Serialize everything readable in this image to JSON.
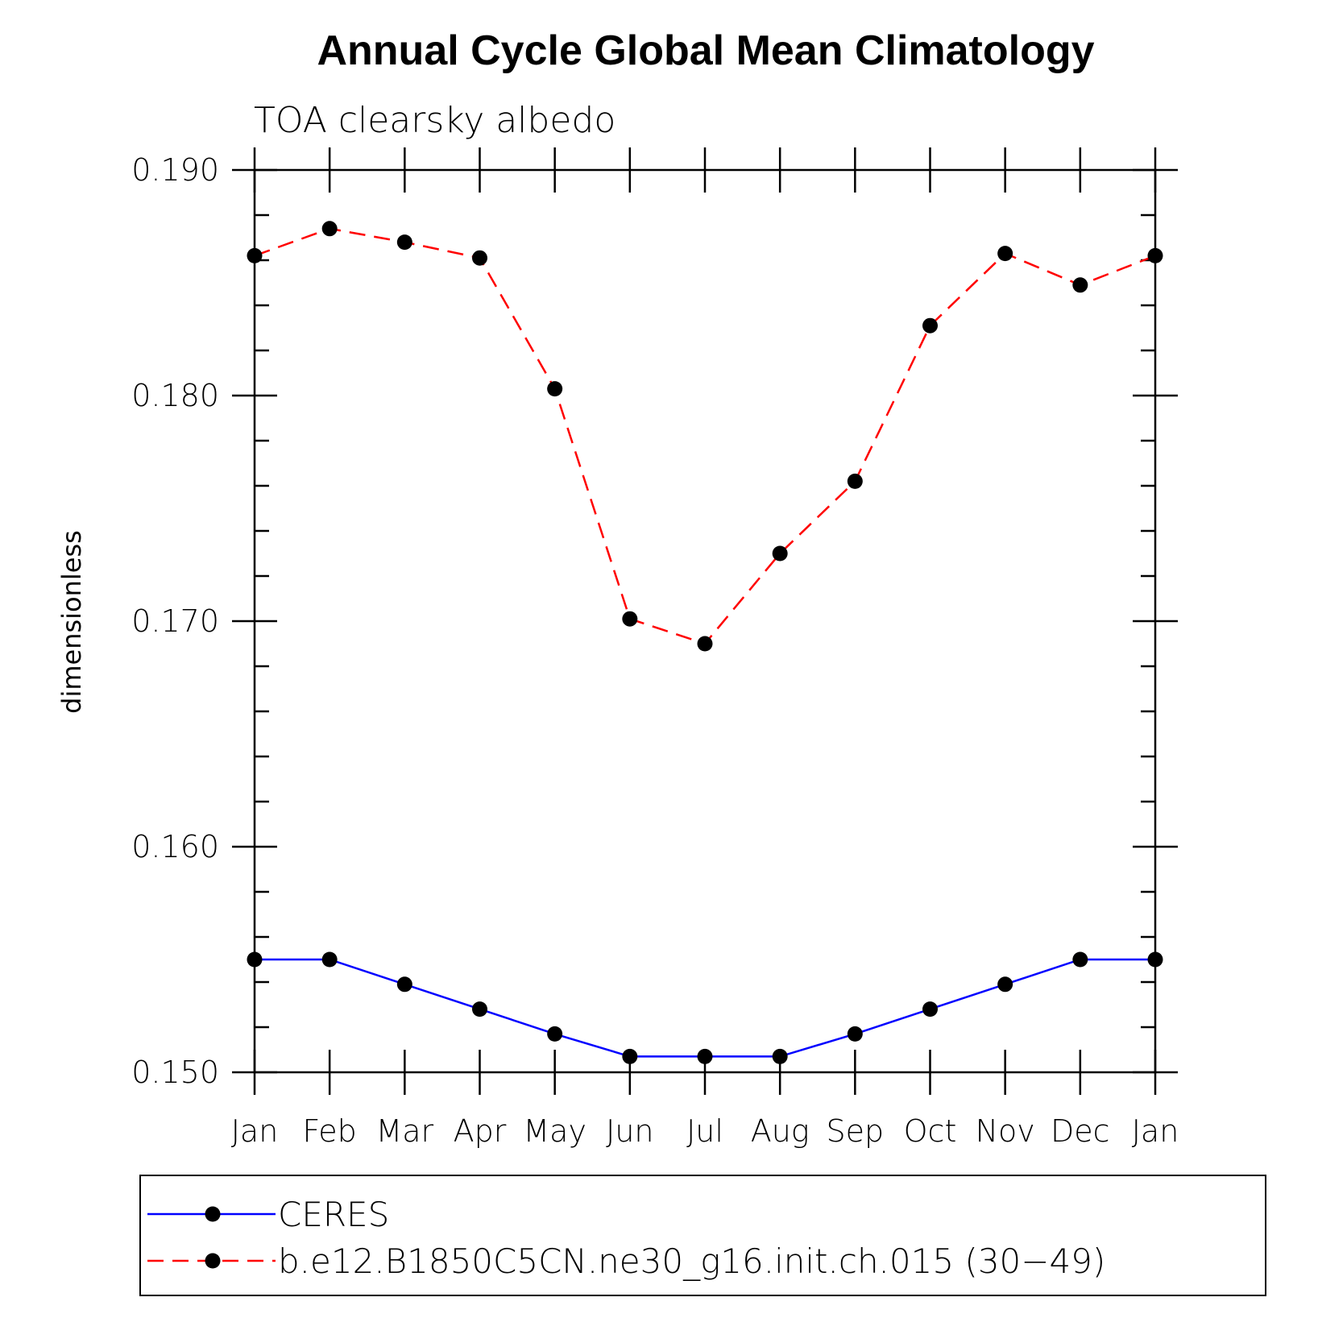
{
  "chart_data": {
    "type": "line",
    "title": "Annual Cycle Global Mean Climatology",
    "subtitle": "TOA clearsky albedo",
    "xlabel": "",
    "ylabel": "dimensionless",
    "categories": [
      "Jan",
      "Feb",
      "Mar",
      "Apr",
      "May",
      "Jun",
      "Jul",
      "Aug",
      "Sep",
      "Oct",
      "Nov",
      "Dec",
      "Jan"
    ],
    "ylim": [
      0.15,
      0.19
    ],
    "yticks": [
      "0.150",
      "0.160",
      "0.170",
      "0.180",
      "0.190"
    ],
    "grid": false,
    "legend_position": "bottom",
    "series": [
      {
        "name": "CERES",
        "color": "#0000ff",
        "line_style": "solid",
        "marker": "filled-circle",
        "values": [
          0.155,
          0.155,
          0.1539,
          0.1528,
          0.1517,
          0.1507,
          0.1507,
          0.1507,
          0.1517,
          0.1528,
          0.1539,
          0.155,
          0.155
        ]
      },
      {
        "name": "b.e12.B1850C5CN.ne30_g16.init.ch.015 (30−49)",
        "color": "#ff0000",
        "line_style": "dashed",
        "marker": "filled-circle",
        "values": [
          0.1862,
          0.1874,
          0.1868,
          0.1861,
          0.1803,
          0.1701,
          0.169,
          0.173,
          0.1762,
          0.1831,
          0.1863,
          0.1849,
          0.1862
        ]
      }
    ]
  }
}
